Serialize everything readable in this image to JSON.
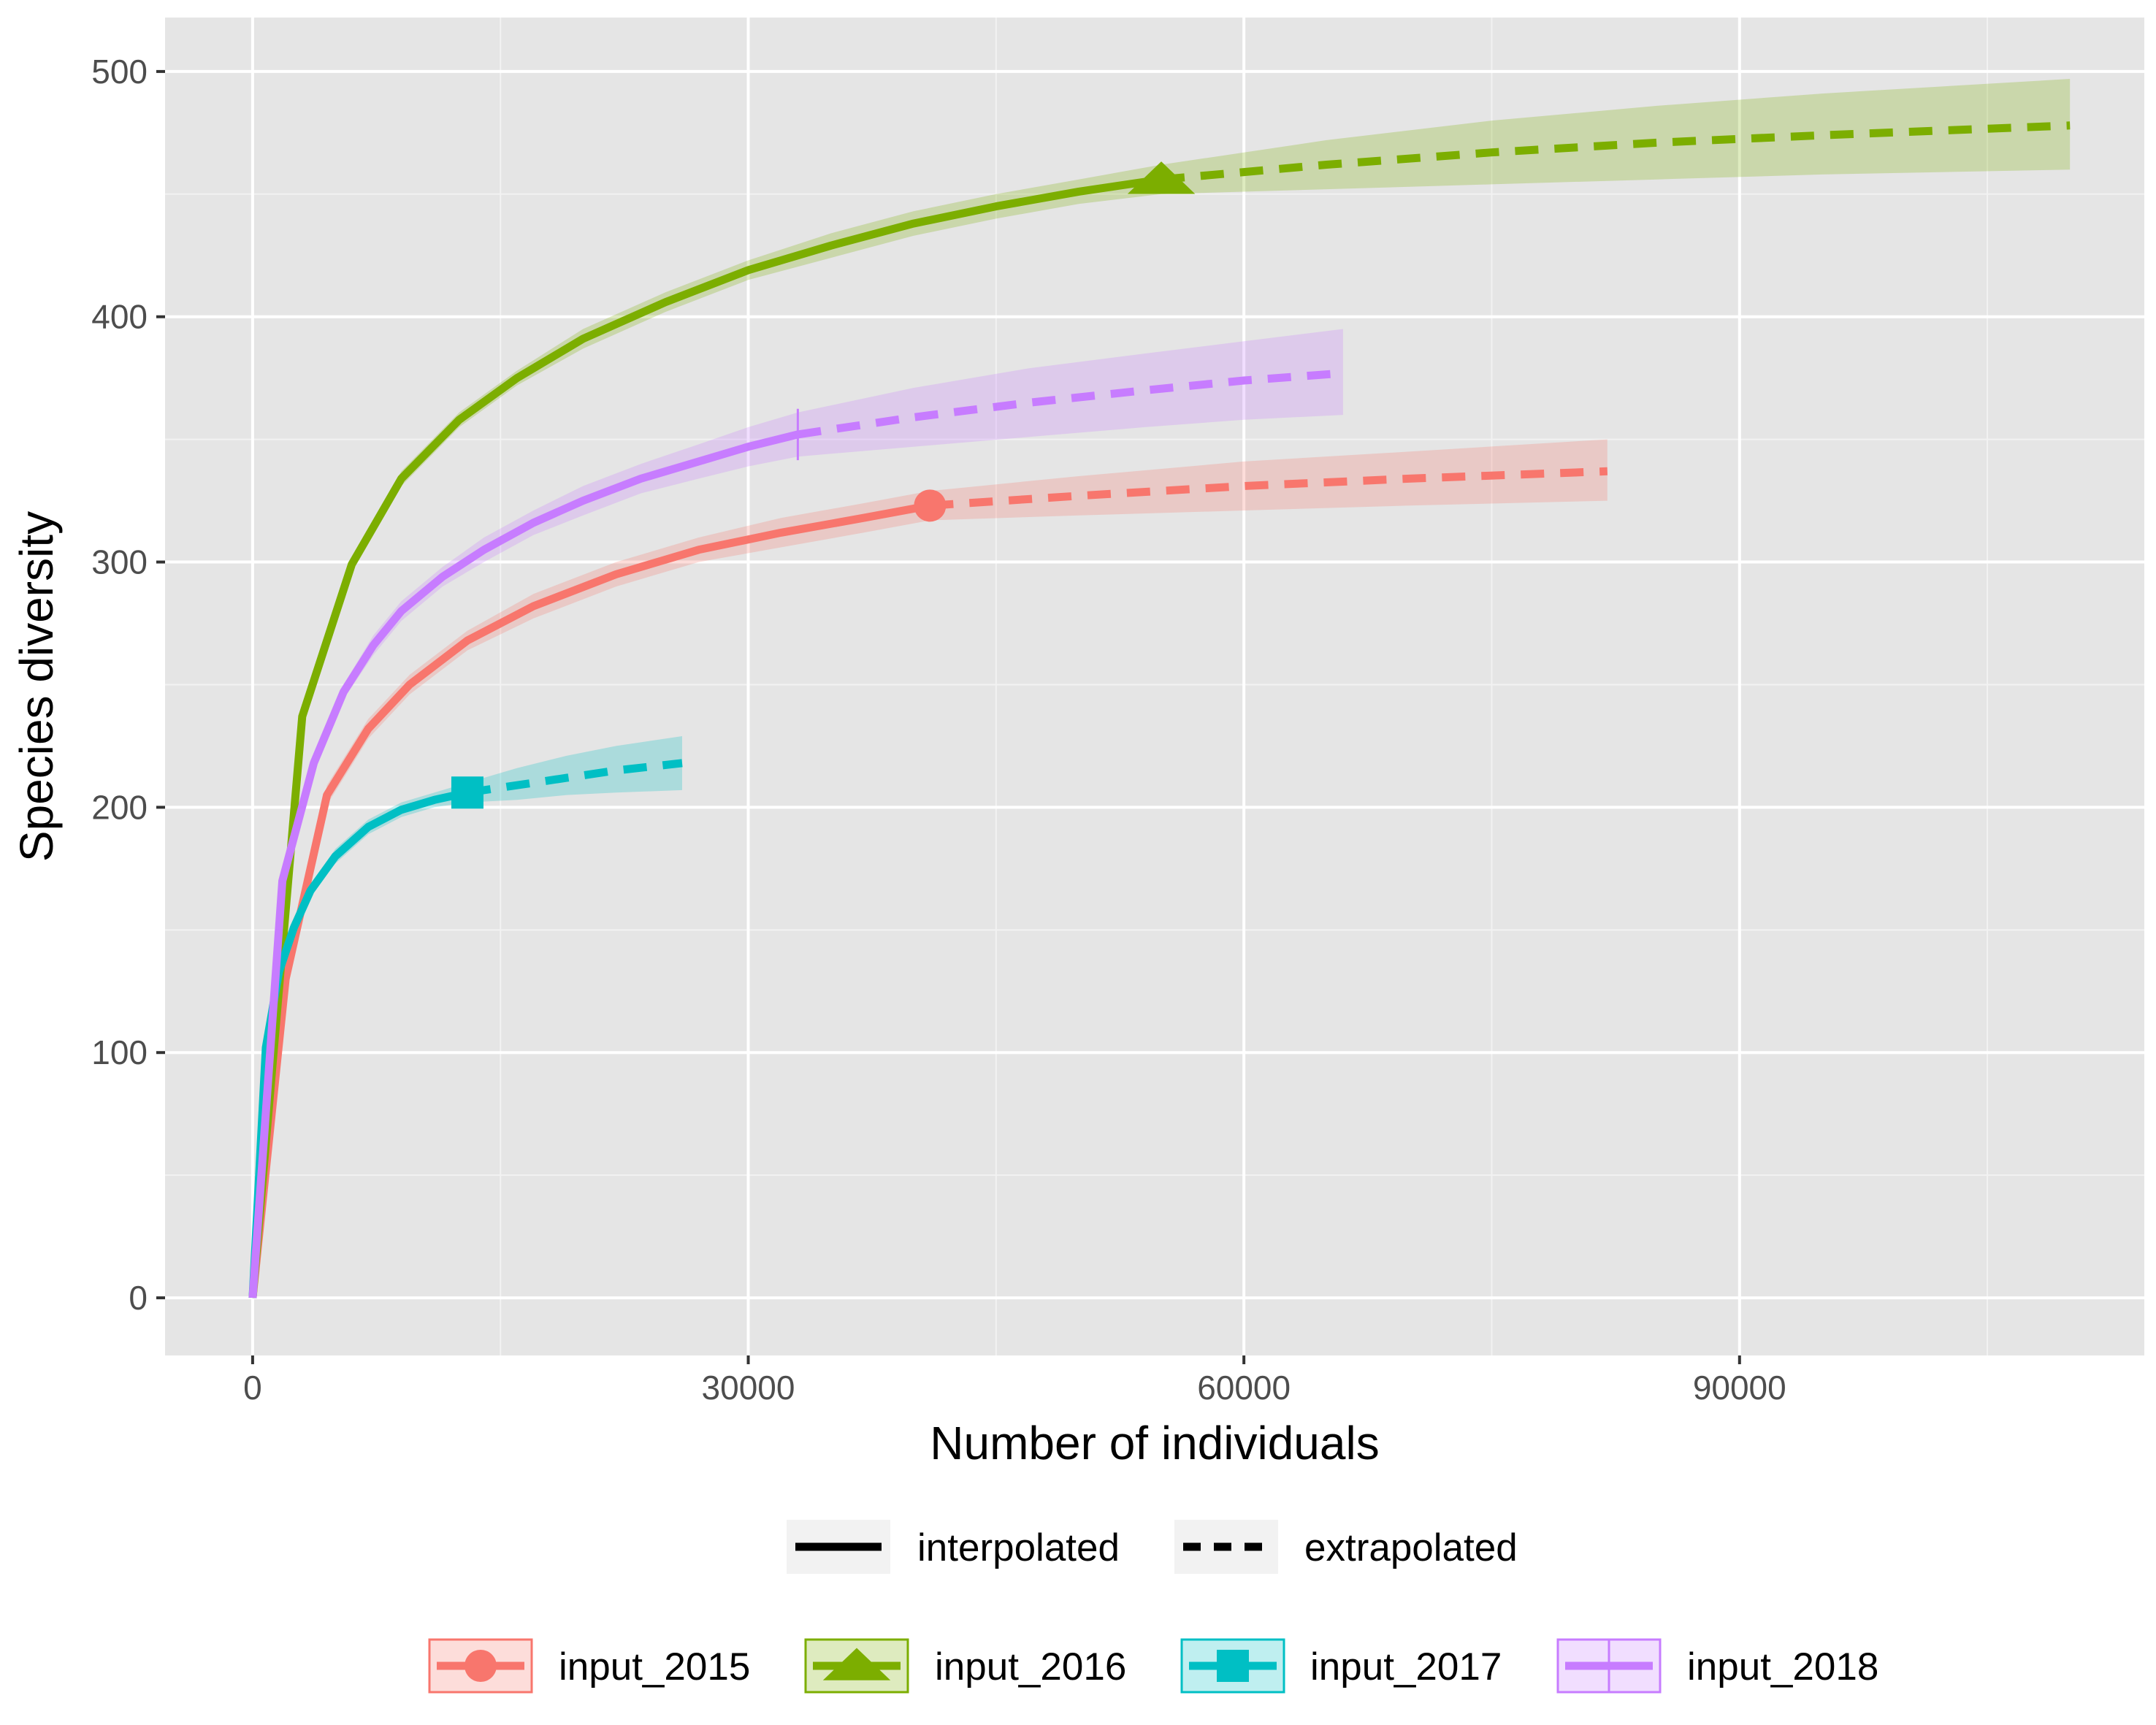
{
  "chart_data": {
    "type": "line",
    "title": "",
    "xlabel": "Number of individuals",
    "ylabel": "Species diversity",
    "xlim": [
      -5300,
      114500
    ],
    "ylim": [
      -23.5,
      522
    ],
    "x_ticks": [
      0,
      30000,
      60000,
      90000
    ],
    "x_tick_labels": [
      "0",
      "30000",
      "60000",
      "90000"
    ],
    "y_ticks": [
      0,
      100,
      200,
      300,
      400,
      500
    ],
    "y_tick_labels": [
      "0",
      "100",
      "200",
      "300",
      "400",
      "500"
    ],
    "grid": true,
    "panel_background": "#e5e5e5",
    "legend_position": "bottom",
    "linetype_legend": [
      {
        "label": "interpolated",
        "linetype": "solid"
      },
      {
        "label": "extrapolated",
        "linetype": "dashed"
      }
    ],
    "series": [
      {
        "name": "input_2015",
        "color": "#f8766d",
        "marker": "circle",
        "observed": [
          41000,
          323
        ],
        "interpolated": [
          [
            0,
            0
          ],
          [
            2000,
            130
          ],
          [
            4500,
            205
          ],
          [
            7000,
            232
          ],
          [
            9500,
            250
          ],
          [
            13000,
            268
          ],
          [
            17000,
            282
          ],
          [
            22000,
            295
          ],
          [
            27000,
            305
          ],
          [
            32000,
            312
          ],
          [
            37000,
            318
          ],
          [
            41000,
            323
          ]
        ],
        "extrapolated": [
          [
            41000,
            323
          ],
          [
            50000,
            327
          ],
          [
            60000,
            331
          ],
          [
            70000,
            334
          ],
          [
            82000,
            337
          ]
        ],
        "band_upper": [
          [
            0,
            0
          ],
          [
            2000,
            134
          ],
          [
            4500,
            209
          ],
          [
            7000,
            236
          ],
          [
            9500,
            254
          ],
          [
            13000,
            272
          ],
          [
            17000,
            287
          ],
          [
            22000,
            300
          ],
          [
            27000,
            310
          ],
          [
            32000,
            318
          ],
          [
            37000,
            324
          ],
          [
            41000,
            329
          ],
          [
            50000,
            335
          ],
          [
            60000,
            341
          ],
          [
            70000,
            345
          ],
          [
            82000,
            350
          ]
        ],
        "band_lower": [
          [
            0,
            0
          ],
          [
            2000,
            126
          ],
          [
            4500,
            201
          ],
          [
            7000,
            228
          ],
          [
            9500,
            246
          ],
          [
            13000,
            264
          ],
          [
            17000,
            277
          ],
          [
            22000,
            290
          ],
          [
            27000,
            300
          ],
          [
            32000,
            306
          ],
          [
            37000,
            312
          ],
          [
            41000,
            317
          ],
          [
            50000,
            319
          ],
          [
            60000,
            321
          ],
          [
            70000,
            323
          ],
          [
            82000,
            325
          ]
        ]
      },
      {
        "name": "input_2016",
        "color": "#7cae00",
        "marker": "triangle",
        "observed": [
          55000,
          456
        ],
        "interpolated": [
          [
            0,
            0
          ],
          [
            3000,
            237
          ],
          [
            6000,
            299
          ],
          [
            9000,
            334
          ],
          [
            12500,
            358
          ],
          [
            16000,
            375
          ],
          [
            20000,
            391
          ],
          [
            25000,
            406
          ],
          [
            30000,
            419
          ],
          [
            35000,
            429
          ],
          [
            40000,
            438
          ],
          [
            45000,
            445
          ],
          [
            50000,
            451
          ],
          [
            55000,
            456
          ]
        ],
        "extrapolated": [
          [
            55000,
            456
          ],
          [
            65000,
            462
          ],
          [
            75000,
            467
          ],
          [
            85000,
            471
          ],
          [
            95000,
            474
          ],
          [
            110000,
            478
          ]
        ],
        "band_upper": [
          [
            0,
            0
          ],
          [
            3000,
            240
          ],
          [
            6000,
            302
          ],
          [
            9000,
            337
          ],
          [
            12500,
            361
          ],
          [
            16000,
            378
          ],
          [
            20000,
            395
          ],
          [
            25000,
            410
          ],
          [
            30000,
            423
          ],
          [
            35000,
            434
          ],
          [
            40000,
            443
          ],
          [
            45000,
            450
          ],
          [
            50000,
            456
          ],
          [
            55000,
            462
          ],
          [
            65000,
            472
          ],
          [
            75000,
            480
          ],
          [
            85000,
            486
          ],
          [
            95000,
            491
          ],
          [
            110000,
            497
          ]
        ],
        "band_lower": [
          [
            0,
            0
          ],
          [
            3000,
            234
          ],
          [
            6000,
            296
          ],
          [
            9000,
            331
          ],
          [
            12500,
            355
          ],
          [
            16000,
            372
          ],
          [
            20000,
            387
          ],
          [
            25000,
            402
          ],
          [
            30000,
            415
          ],
          [
            35000,
            424
          ],
          [
            40000,
            433
          ],
          [
            45000,
            440
          ],
          [
            50000,
            446
          ],
          [
            55000,
            450
          ],
          [
            65000,
            452
          ],
          [
            75000,
            454
          ],
          [
            85000,
            456
          ],
          [
            95000,
            458
          ],
          [
            110000,
            460
          ]
        ]
      },
      {
        "name": "input_2017",
        "color": "#00bfc4",
        "marker": "square",
        "observed": [
          13000,
          206
        ],
        "interpolated": [
          [
            0,
            0
          ],
          [
            800,
            102
          ],
          [
            1600,
            133
          ],
          [
            2500,
            151
          ],
          [
            3500,
            166
          ],
          [
            5000,
            180
          ],
          [
            7000,
            192
          ],
          [
            9000,
            199
          ],
          [
            11000,
            203
          ],
          [
            13000,
            206
          ]
        ],
        "extrapolated": [
          [
            13000,
            206
          ],
          [
            16000,
            209
          ],
          [
            19000,
            212
          ],
          [
            22000,
            215
          ],
          [
            26000,
            218
          ]
        ],
        "band_upper": [
          [
            0,
            0
          ],
          [
            800,
            104
          ],
          [
            1600,
            135
          ],
          [
            2500,
            153
          ],
          [
            3500,
            168
          ],
          [
            5000,
            183
          ],
          [
            7000,
            195
          ],
          [
            9000,
            202
          ],
          [
            11000,
            206
          ],
          [
            13000,
            210
          ],
          [
            16000,
            216
          ],
          [
            19000,
            221
          ],
          [
            22000,
            225
          ],
          [
            26000,
            229
          ]
        ],
        "band_lower": [
          [
            0,
            0
          ],
          [
            800,
            100
          ],
          [
            1600,
            131
          ],
          [
            2500,
            149
          ],
          [
            3500,
            164
          ],
          [
            5000,
            177
          ],
          [
            7000,
            189
          ],
          [
            9000,
            196
          ],
          [
            11000,
            200
          ],
          [
            13000,
            202
          ],
          [
            16000,
            203
          ],
          [
            19000,
            205
          ],
          [
            22000,
            206
          ],
          [
            26000,
            207
          ]
        ]
      },
      {
        "name": "input_2018",
        "color": "#c77cff",
        "marker": "vline",
        "observed": [
          33000,
          352
        ],
        "interpolated": [
          [
            0,
            0
          ],
          [
            1800,
            170
          ],
          [
            3700,
            218
          ],
          [
            5500,
            247
          ],
          [
            7300,
            266
          ],
          [
            9000,
            280
          ],
          [
            11500,
            294
          ],
          [
            14000,
            305
          ],
          [
            17000,
            316
          ],
          [
            20000,
            325
          ],
          [
            23500,
            334
          ],
          [
            27000,
            341
          ],
          [
            30000,
            347
          ],
          [
            33000,
            352
          ]
        ],
        "extrapolated": [
          [
            33000,
            352
          ],
          [
            40000,
            359
          ],
          [
            47000,
            365
          ],
          [
            54000,
            370
          ],
          [
            60000,
            374
          ],
          [
            66000,
            377
          ]
        ],
        "band_upper": [
          [
            0,
            0
          ],
          [
            1800,
            172
          ],
          [
            3700,
            221
          ],
          [
            5500,
            250
          ],
          [
            7300,
            270
          ],
          [
            9000,
            284
          ],
          [
            11500,
            298
          ],
          [
            14000,
            310
          ],
          [
            17000,
            321
          ],
          [
            20000,
            331
          ],
          [
            23500,
            340
          ],
          [
            27000,
            348
          ],
          [
            30000,
            355
          ],
          [
            33000,
            361
          ],
          [
            40000,
            371
          ],
          [
            47000,
            379
          ],
          [
            54000,
            385
          ],
          [
            60000,
            390
          ],
          [
            66000,
            395
          ]
        ],
        "band_lower": [
          [
            0,
            0
          ],
          [
            1800,
            168
          ],
          [
            3700,
            215
          ],
          [
            5500,
            244
          ],
          [
            7300,
            262
          ],
          [
            9000,
            276
          ],
          [
            11500,
            290
          ],
          [
            14000,
            300
          ],
          [
            17000,
            311
          ],
          [
            20000,
            319
          ],
          [
            23500,
            328
          ],
          [
            27000,
            334
          ],
          [
            30000,
            339
          ],
          [
            33000,
            343
          ],
          [
            40000,
            347
          ],
          [
            47000,
            351
          ],
          [
            54000,
            355
          ],
          [
            60000,
            358
          ],
          [
            66000,
            360
          ]
        ]
      }
    ]
  }
}
